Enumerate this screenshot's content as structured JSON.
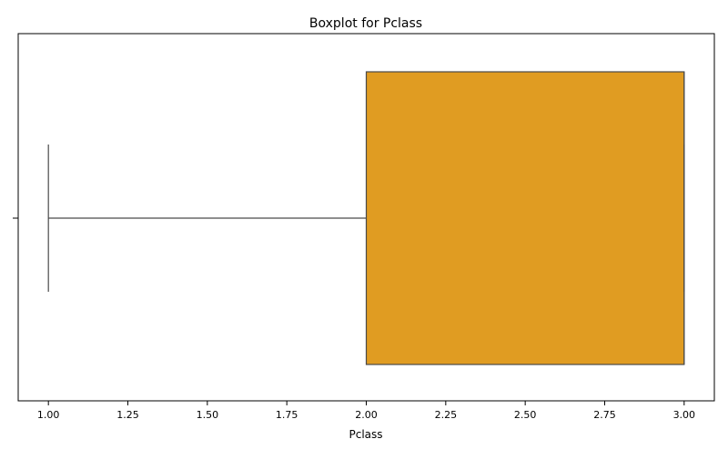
{
  "chart_data": {
    "type": "boxplot",
    "title": "Boxplot for Pclass",
    "xlabel": "Pclass",
    "ylabel": "",
    "xlim": [
      0.905,
      3.095
    ],
    "xticks": [
      1.0,
      1.25,
      1.5,
      1.75,
      2.0,
      2.25,
      2.5,
      2.75,
      3.0
    ],
    "xtick_labels": [
      "1.00",
      "1.25",
      "1.50",
      "1.75",
      "2.00",
      "2.25",
      "2.50",
      "2.75",
      "3.00"
    ],
    "orientation": "horizontal",
    "grid": false,
    "box": {
      "min": 1.0,
      "q1": 2.0,
      "median": 3.0,
      "q3": 3.0,
      "max": 3.0,
      "fill_color": "#e09c22",
      "line_color": "#4a4a4a"
    }
  }
}
